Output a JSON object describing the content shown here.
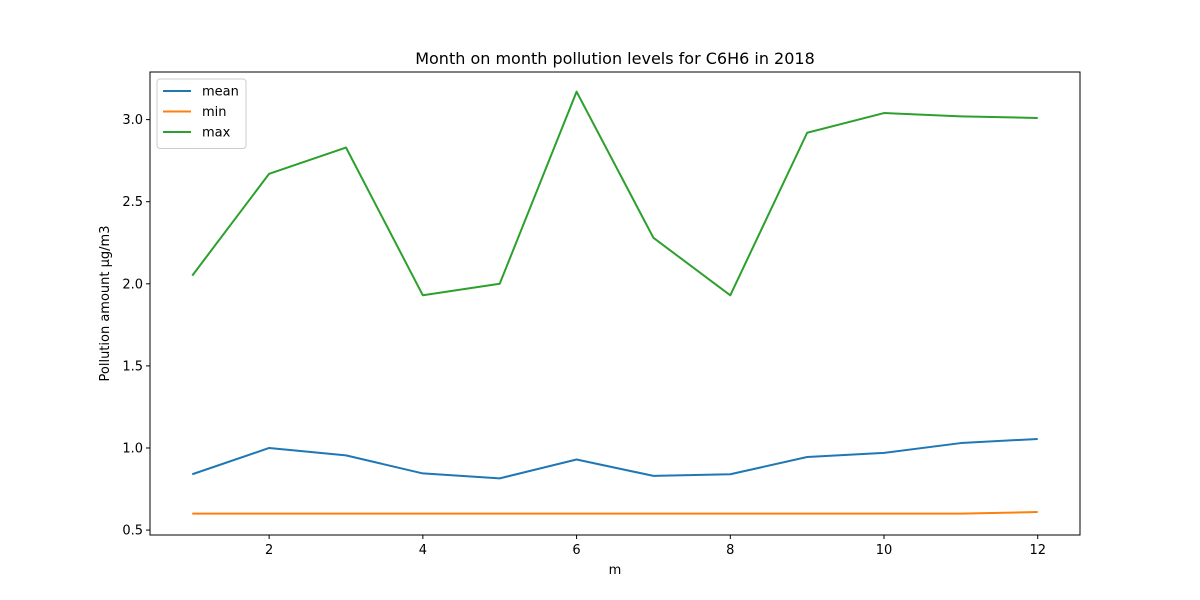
{
  "chart_data": {
    "type": "line",
    "title": "Month on month pollution levels for C6H6 in 2018",
    "xlabel": "m",
    "ylabel": "Pollution amount µg/m3",
    "x": [
      1,
      2,
      3,
      4,
      5,
      6,
      7,
      8,
      9,
      10,
      11,
      12
    ],
    "xlim": [
      0.45,
      12.55
    ],
    "ylim": [
      0.47,
      3.29
    ],
    "xticks": [
      2,
      4,
      6,
      8,
      10,
      12
    ],
    "xtick_labels": [
      "2",
      "4",
      "6",
      "8",
      "10",
      "12"
    ],
    "yticks": [
      0.5,
      1.0,
      1.5,
      2.0,
      2.5,
      3.0
    ],
    "ytick_labels": [
      "0.5",
      "1.0",
      "1.5",
      "2.0",
      "2.5",
      "3.0"
    ],
    "grid": false,
    "legend_position": "upper-left",
    "series": [
      {
        "name": "mean",
        "color": "#1f77b4",
        "values": [
          0.84,
          1.0,
          0.955,
          0.845,
          0.815,
          0.93,
          0.83,
          0.84,
          0.945,
          0.97,
          1.03,
          1.055
        ]
      },
      {
        "name": "min",
        "color": "#ff7f0e",
        "values": [
          0.6,
          0.6,
          0.6,
          0.6,
          0.6,
          0.6,
          0.6,
          0.6,
          0.6,
          0.6,
          0.6,
          0.61
        ]
      },
      {
        "name": "max",
        "color": "#2ca02c",
        "values": [
          2.05,
          2.67,
          2.83,
          1.93,
          2.0,
          3.17,
          2.28,
          1.93,
          2.92,
          3.04,
          3.02,
          3.01
        ]
      }
    ]
  }
}
